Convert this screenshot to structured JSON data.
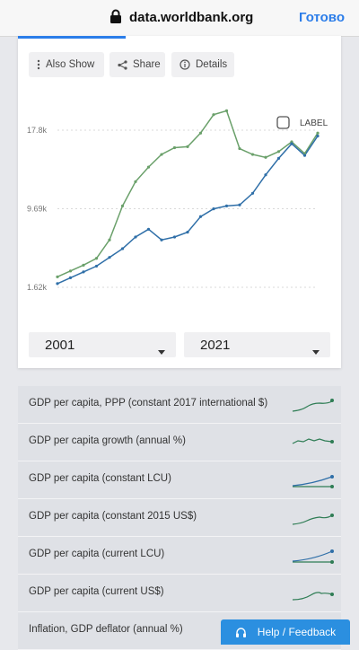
{
  "browser": {
    "url": "data.worldbank.org",
    "done_label": "Готово"
  },
  "toolbar": {
    "also_show": "Also Show",
    "share": "Share",
    "details": "Details"
  },
  "chart_data": {
    "type": "line",
    "yticks": [
      "17.8k",
      "9.69k",
      "1.62k"
    ],
    "ylim": [
      1620,
      17800
    ],
    "label_checkbox": "LABEL",
    "x": [
      2001,
      2002,
      2003,
      2004,
      2005,
      2006,
      2007,
      2008,
      2009,
      2010,
      2011,
      2012,
      2013,
      2014,
      2015,
      2016,
      2017,
      2018,
      2019,
      2020,
      2021
    ],
    "series": [
      {
        "color": "#6aa06a",
        "values": [
          2700,
          3300,
          3900,
          4600,
          6500,
          10000,
          12500,
          14000,
          15300,
          16000,
          16100,
          17500,
          19400,
          19800,
          15900,
          15300,
          15000,
          15600,
          16600,
          15400,
          17500
        ]
      },
      {
        "color": "#2f6fa8",
        "values": [
          2000,
          2600,
          3200,
          3800,
          4700,
          5600,
          6800,
          7600,
          6500,
          6800,
          7300,
          8900,
          9700,
          10000,
          10100,
          11300,
          13200,
          14900,
          16400,
          15200,
          17200
        ]
      }
    ]
  },
  "range": {
    "start": "2001",
    "end": "2021"
  },
  "indicators": [
    {
      "label": "GDP per capita, PPP (constant 2017 international $)",
      "color": "#2f7d55"
    },
    {
      "label": "GDP per capita growth (annual %)",
      "color": "#2f7d55"
    },
    {
      "label": "GDP per capita (constant LCU)",
      "color": "#2f7d55"
    },
    {
      "label": "GDP per capita (constant 2015 US$)",
      "color": "#2f7d55"
    },
    {
      "label": "GDP per capita (current LCU)",
      "color": "#2f7d55"
    },
    {
      "label": "GDP per capita (current US$)",
      "color": "#2f7d55"
    },
    {
      "label": "Inflation, GDP deflator (annual %)",
      "color": "#2f7d55"
    }
  ],
  "help": {
    "label": "Help / Feedback"
  }
}
